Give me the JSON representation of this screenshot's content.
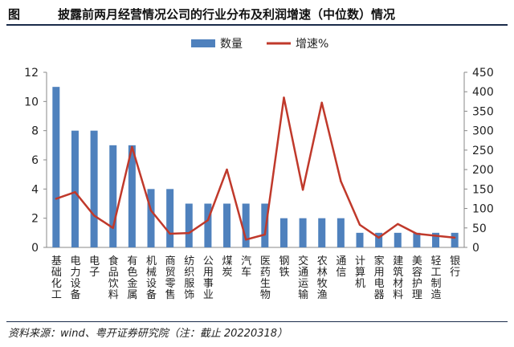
{
  "header": {
    "figure_label": "图",
    "title": "披露前两月经营情况公司的行业分布及利润增速（中位数）情况"
  },
  "footer": {
    "source": "资料来源：wind、粤开证券研究院（注：截止 20220318）"
  },
  "chart_data": {
    "type": "bar",
    "categories": [
      "基础化工",
      "电力设备",
      "电子",
      "食品饮料",
      "有色金属",
      "机械设备",
      "商贸零售",
      "纺织服饰",
      "公用事业",
      "煤炭",
      "汽车",
      "医药生物",
      "钢铁",
      "交通运输",
      "农林牧渔",
      "通信",
      "计算机",
      "家用电器",
      "建筑材料",
      "美容护理",
      "轻工制造",
      "银行"
    ],
    "series": [
      {
        "name": "数量",
        "type": "bar",
        "axis": "left",
        "values": [
          11,
          8,
          8,
          7,
          7,
          4,
          4,
          3,
          3,
          3,
          3,
          3,
          2,
          2,
          2,
          2,
          1,
          1,
          1,
          1,
          1,
          1
        ],
        "color": "#4f81bd"
      },
      {
        "name": "增速%",
        "type": "line",
        "axis": "right",
        "values": [
          125,
          142,
          82,
          50,
          258,
          95,
          35,
          37,
          70,
          200,
          20,
          33,
          385,
          148,
          372,
          170,
          58,
          25,
          60,
          35,
          30,
          25
        ],
        "color": "#c0392b"
      }
    ],
    "left_axis": {
      "min": 0,
      "max": 12,
      "step": 2,
      "ticks": [
        "0",
        "2",
        "4",
        "6",
        "8",
        "10",
        "12"
      ]
    },
    "right_axis": {
      "min": 0,
      "max": 450,
      "step": 50,
      "ticks": [
        "0",
        "50",
        "100",
        "150",
        "200",
        "250",
        "300",
        "350",
        "400",
        "450"
      ]
    },
    "legend_position": "top-center",
    "grid": false
  }
}
